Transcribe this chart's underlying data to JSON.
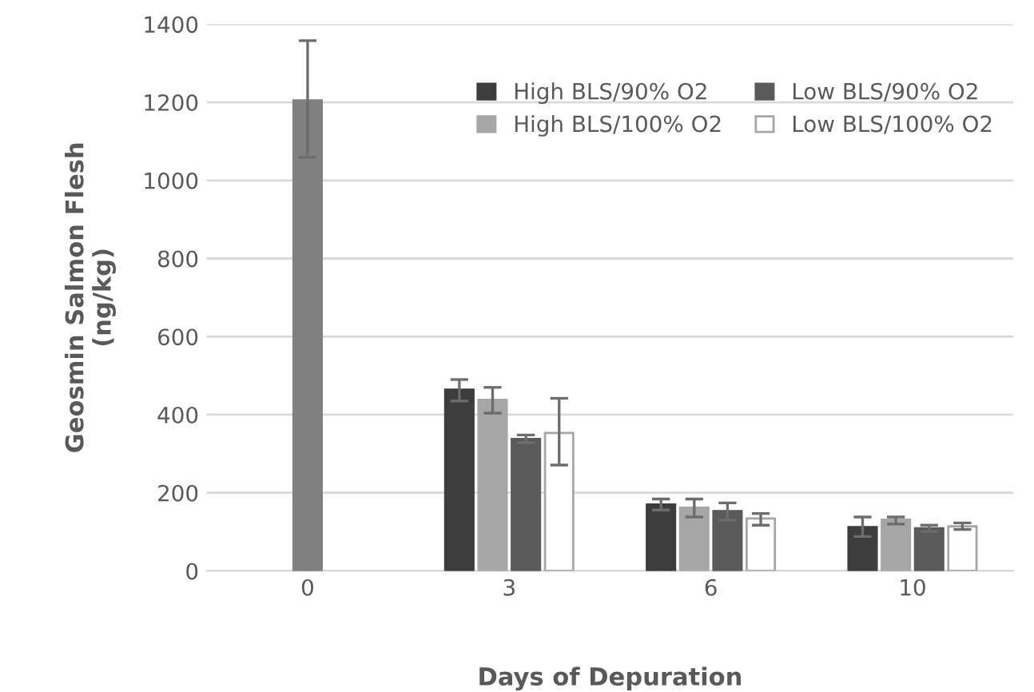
{
  "chart_data": {
    "type": "bar",
    "xlabel": "Days of Depuration",
    "ylabel": "Geosmin Salmon Flesh\n(ng/kg)",
    "categories": [
      "0",
      "3",
      "6",
      "10"
    ],
    "series": [
      {
        "color": "#808080",
        "values": [
          1205,
          null,
          null,
          null
        ],
        "errors": [
          [
            1059,
            1358
          ],
          null,
          null,
          null
        ]
      },
      {
        "name": "High BLS/90% O2",
        "color": "#3d3d3d",
        "values": [
          null,
          464,
          170,
          112
        ],
        "errors": [
          null,
          [
            435,
            490
          ],
          [
            156,
            184
          ],
          [
            88,
            138
          ]
        ]
      },
      {
        "name": "High BLS/100% O2",
        "color": "#a6a6a6",
        "values": [
          null,
          438,
          162,
          131
        ],
        "errors": [
          null,
          [
            404,
            470
          ],
          [
            138,
            184
          ],
          [
            120,
            138
          ]
        ]
      },
      {
        "name": "Low BLS/90% O2",
        "color": "#5a5a5a",
        "values": [
          null,
          338,
          153,
          109
        ],
        "errors": [
          null,
          [
            328,
            348
          ],
          [
            130,
            174
          ],
          [
            101,
            117
          ]
        ]
      },
      {
        "name": "Low BLS/100% O2",
        "color": "#ffffff",
        "values": [
          null,
          353,
          134,
          114
        ],
        "errors": [
          null,
          [
            271,
            442
          ],
          [
            117,
            147
          ],
          [
            106,
            123
          ]
        ]
      }
    ],
    "ylim": [
      0,
      1400
    ],
    "yticks": [
      0,
      200,
      400,
      600,
      800,
      1000,
      1200,
      1400
    ],
    "grid": "y",
    "legend": "top right"
  }
}
